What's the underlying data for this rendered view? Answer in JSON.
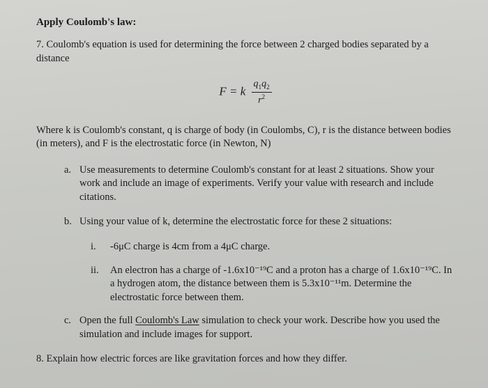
{
  "heading": "Apply Coulomb's law:",
  "intro": "7. Coulomb's equation is used for determining the force between 2 charged bodies separated by a distance",
  "formula": {
    "left": "F = k",
    "num_q": "q",
    "sub1": "1",
    "num_q2": "q",
    "sub2": "2",
    "den_r": "r",
    "den_sup": "2"
  },
  "where": "Where k is Coulomb's constant, q is charge of body (in Coulombs, C), r is the distance between bodies (in meters), and F is the electrostatic force (in Newton, N)",
  "a": {
    "label": "a.",
    "text": "Use measurements to determine Coulomb's constant for at least 2 situations. Show your work and include an image of experiments. Verify your value with research and include citations."
  },
  "b": {
    "label": "b.",
    "text": "Using your value of k, determine the electrostatic force for these 2 situations:"
  },
  "bi": {
    "label": "i.",
    "text": "-6μC charge is 4cm from a 4μC charge."
  },
  "bii": {
    "label": "ii.",
    "text": "An electron has a charge of -1.6x10⁻¹⁹C and a proton has a charge of 1.6x10⁻¹⁹C. In a hydrogen atom, the distance between them is 5.3x10⁻¹¹m. Determine the electrostatic force between them."
  },
  "c": {
    "label": "c.",
    "pre": "Open the full ",
    "link": "Coulomb's Law",
    "post": " simulation to check your work. Describe how you used the simulation and include images for support."
  },
  "q8": "8. Explain how electric forces are like gravitation forces and how they differ."
}
